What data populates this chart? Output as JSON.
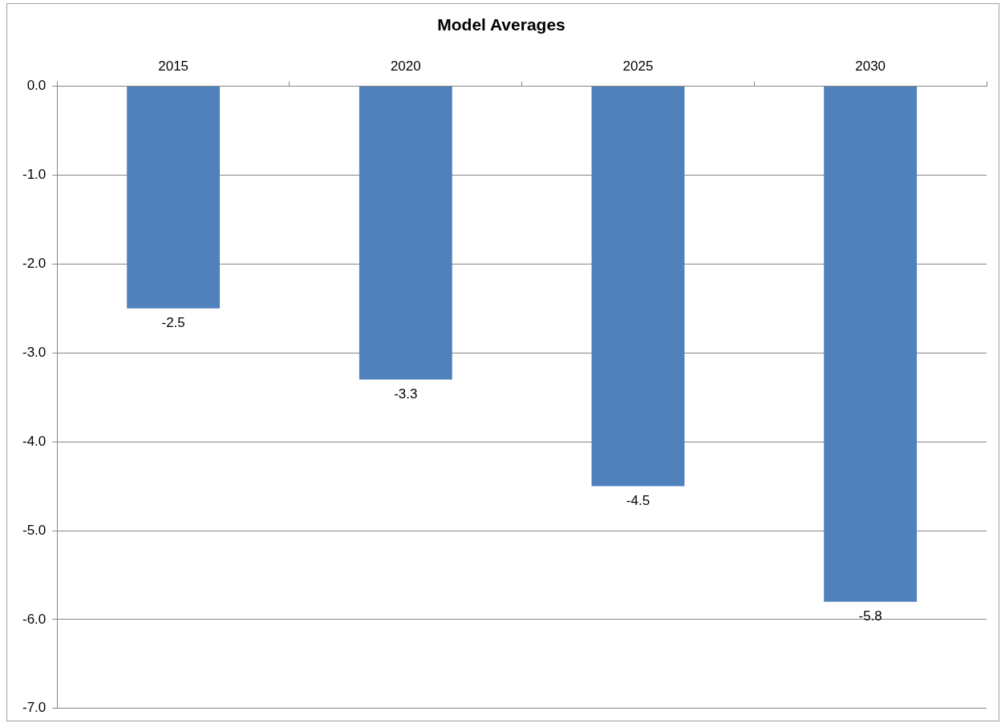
{
  "chart_data": {
    "type": "bar",
    "title": "Model Averages",
    "categories": [
      "2015",
      "2020",
      "2025",
      "2030"
    ],
    "values": [
      -2.5,
      -3.3,
      -4.5,
      -5.8
    ],
    "color": "#4f81bd",
    "ylim": [
      -7,
      0
    ],
    "yticks": [
      {
        "value": 0,
        "label": "0.0"
      },
      {
        "value": -1,
        "label": "-1.0"
      },
      {
        "value": -2,
        "label": "-2.0"
      },
      {
        "value": -3,
        "label": "-3.0"
      },
      {
        "value": -4,
        "label": "-4.0"
      },
      {
        "value": -5,
        "label": "-5.0"
      },
      {
        "value": -6,
        "label": "-6.0"
      },
      {
        "value": -7,
        "label": "-7.0"
      }
    ],
    "grid": "y",
    "data_labels": true,
    "legend": false
  }
}
